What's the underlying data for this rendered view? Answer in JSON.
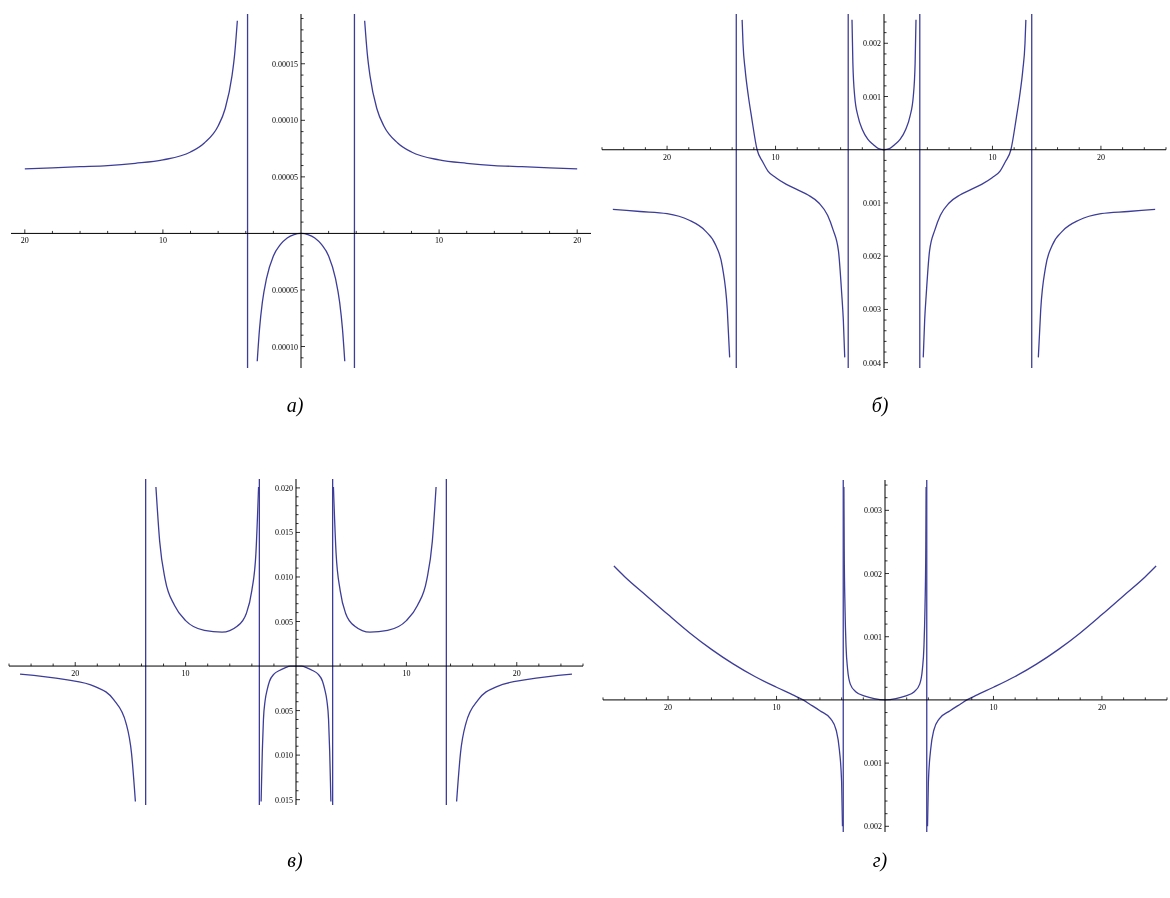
{
  "chart_data": [
    {
      "type": "line",
      "title": "а)",
      "color": "#3d3d99",
      "xlim": [
        -21,
        21
      ],
      "ylim": [
        -0.000119,
        0.000194
      ],
      "xticks": [
        {
          "value": -20,
          "label": "20"
        },
        {
          "value": -18,
          "label": null
        },
        {
          "value": -16,
          "label": null
        },
        {
          "value": -14,
          "label": null
        },
        {
          "value": -12,
          "label": null
        },
        {
          "value": -10,
          "label": "10"
        },
        {
          "value": -8,
          "label": null
        },
        {
          "value": -6,
          "label": null
        },
        {
          "value": -4,
          "label": null
        },
        {
          "value": -2,
          "label": null
        },
        {
          "value": 2,
          "label": null
        },
        {
          "value": 4,
          "label": null
        },
        {
          "value": 6,
          "label": null
        },
        {
          "value": 8,
          "label": null
        },
        {
          "value": 10,
          "label": "10"
        },
        {
          "value": 12,
          "label": null
        },
        {
          "value": 14,
          "label": null
        },
        {
          "value": 16,
          "label": null
        },
        {
          "value": 18,
          "label": null
        },
        {
          "value": 20,
          "label": "20"
        }
      ],
      "yticks": [
        {
          "value": -0.00011,
          "label": null
        },
        {
          "value": -0.0001,
          "label": "0.00010"
        },
        {
          "value": -9e-05,
          "label": null
        },
        {
          "value": -8e-05,
          "label": null
        },
        {
          "value": -7e-05,
          "label": null
        },
        {
          "value": -6e-05,
          "label": null
        },
        {
          "value": -5e-05,
          "label": "0.00005"
        },
        {
          "value": -4e-05,
          "label": null
        },
        {
          "value": -3e-05,
          "label": null
        },
        {
          "value": -2e-05,
          "label": null
        },
        {
          "value": -1e-05,
          "label": null
        },
        {
          "value": 1e-05,
          "label": null
        },
        {
          "value": 2e-05,
          "label": null
        },
        {
          "value": 3e-05,
          "label": null
        },
        {
          "value": 4e-05,
          "label": null
        },
        {
          "value": 5e-05,
          "label": "0.00005"
        },
        {
          "value": 6e-05,
          "label": null
        },
        {
          "value": 7e-05,
          "label": null
        },
        {
          "value": 8e-05,
          "label": null
        },
        {
          "value": 9e-05,
          "label": null
        },
        {
          "value": 0.0001,
          "label": "0.00010"
        },
        {
          "value": 0.00011,
          "label": null
        },
        {
          "value": 0.00012,
          "label": null
        },
        {
          "value": 0.00013,
          "label": null
        },
        {
          "value": 0.00014,
          "label": null
        },
        {
          "value": 0.00015,
          "label": "0.00015"
        },
        {
          "value": 0.00016,
          "label": null
        },
        {
          "value": 0.00017,
          "label": null
        },
        {
          "value": 0.00018,
          "label": null
        },
        {
          "value": 0.00019,
          "label": null
        }
      ],
      "x": [
        -20,
        -18,
        -16,
        -14,
        -12,
        -10,
        -8,
        -7,
        -6,
        -5.5,
        -5,
        -4.8,
        -4.61,
        -3.87,
        -3.17,
        -3,
        -2.8,
        -2.5,
        -2,
        -1.5,
        -1,
        -0.5,
        0,
        0.5,
        1,
        1.5,
        2,
        2.5,
        2.8,
        3,
        3.17,
        3.87,
        4.61,
        4.8,
        5,
        5.5,
        6,
        7,
        8,
        10,
        12,
        14,
        16,
        18,
        20
      ],
      "values": [
        5.7e-05,
        5.8e-05,
        5.9e-05,
        6e-05,
        6.2e-05,
        6.5e-05,
        7.2e-05,
        8e-05,
        9.5e-05,
        0.00011,
        0.000139,
        0.000159,
        0.000188,
        null,
        -0.000113,
        -8.4e-05,
        -6.1e-05,
        -4e-05,
        -2e-05,
        -1e-05,
        -4e-06,
        -1e-06,
        0,
        -1e-06,
        -4e-06,
        -1e-05,
        -2e-05,
        -4e-05,
        -6.1e-05,
        -8.4e-05,
        -0.000113,
        null,
        0.000188,
        0.000159,
        0.000139,
        0.00011,
        9.5e-05,
        8e-05,
        7.2e-05,
        6.5e-05,
        6.2e-05,
        6e-05,
        5.9e-05,
        5.8e-05,
        5.7e-05
      ],
      "ref_lines": [
        {
          "axis": "x",
          "value": -3.87,
          "color": "#3d3d99"
        },
        {
          "axis": "x",
          "value": 3.87,
          "color": "#3d3d99"
        }
      ]
    },
    {
      "type": "line",
      "title": "б)",
      "color": "#3d3d99",
      "xlim": [
        -26,
        26
      ],
      "ylim": [
        -0.0041,
        0.00255
      ],
      "xticks": [
        {
          "value": -26,
          "label": null
        },
        {
          "value": -24,
          "label": null
        },
        {
          "value": -22,
          "label": null
        },
        {
          "value": -20,
          "label": "20"
        },
        {
          "value": -18,
          "label": null
        },
        {
          "value": -16,
          "label": null
        },
        {
          "value": -14,
          "label": null
        },
        {
          "value": -12,
          "label": null
        },
        {
          "value": -10,
          "label": "10"
        },
        {
          "value": -8,
          "label": null
        },
        {
          "value": -6,
          "label": null
        },
        {
          "value": -4,
          "label": null
        },
        {
          "value": -2,
          "label": null
        },
        {
          "value": 2,
          "label": null
        },
        {
          "value": 4,
          "label": null
        },
        {
          "value": 6,
          "label": null
        },
        {
          "value": 8,
          "label": null
        },
        {
          "value": 10,
          "label": "10"
        },
        {
          "value": 12,
          "label": null
        },
        {
          "value": 14,
          "label": null
        },
        {
          "value": 16,
          "label": null
        },
        {
          "value": 18,
          "label": null
        },
        {
          "value": 20,
          "label": "20"
        },
        {
          "value": 22,
          "label": null
        },
        {
          "value": 24,
          "label": null
        },
        {
          "value": 26,
          "label": null
        }
      ],
      "yticks": [
        {
          "value": -0.004,
          "label": "0.004"
        },
        {
          "value": -0.0038,
          "label": null
        },
        {
          "value": -0.0036,
          "label": null
        },
        {
          "value": -0.0034,
          "label": null
        },
        {
          "value": -0.0032,
          "label": null
        },
        {
          "value": -0.003,
          "label": "0.003"
        },
        {
          "value": -0.0028,
          "label": null
        },
        {
          "value": -0.0026,
          "label": null
        },
        {
          "value": -0.0024,
          "label": null
        },
        {
          "value": -0.0022,
          "label": null
        },
        {
          "value": -0.002,
          "label": "0.002"
        },
        {
          "value": -0.0018,
          "label": null
        },
        {
          "value": -0.0016,
          "label": null
        },
        {
          "value": -0.0014,
          "label": null
        },
        {
          "value": -0.0012,
          "label": null
        },
        {
          "value": -0.001,
          "label": "0.001"
        },
        {
          "value": -0.0008,
          "label": null
        },
        {
          "value": -0.0006,
          "label": null
        },
        {
          "value": -0.0004,
          "label": null
        },
        {
          "value": -0.0002,
          "label": null
        },
        {
          "value": 0.0002,
          "label": null
        },
        {
          "value": 0.0004,
          "label": null
        },
        {
          "value": 0.0006,
          "label": null
        },
        {
          "value": 0.0008,
          "label": null
        },
        {
          "value": 0.001,
          "label": "0.001"
        },
        {
          "value": 0.0012,
          "label": null
        },
        {
          "value": 0.0014,
          "label": null
        },
        {
          "value": 0.0016,
          "label": null
        },
        {
          "value": 0.0018,
          "label": null
        },
        {
          "value": 0.002,
          "label": "0.002"
        },
        {
          "value": 0.0022,
          "label": null
        },
        {
          "value": 0.0024,
          "label": null
        }
      ],
      "x": [
        -25,
        -22.5,
        -20,
        -18,
        -16.5,
        -15.5,
        -14.9,
        -14.45,
        -14.23,
        -13.62,
        -13.08,
        -13,
        -12.8,
        -12.5,
        -12.2,
        -11.7,
        -11.2,
        -10.7,
        -10,
        -9,
        -8,
        -7,
        -6,
        -5.2,
        -4.7,
        -4.2,
        -3.9,
        -3.75,
        -3.62,
        -3.3,
        -2.95,
        -2.87,
        -2.7,
        -2.4,
        -2,
        -1.5,
        -1,
        -0.5,
        0,
        0.5,
        1,
        1.5,
        2,
        2.4,
        2.7,
        2.87,
        2.95,
        3.3,
        3.62,
        3.75,
        3.9,
        4.2,
        4.7,
        5.2,
        6,
        7,
        8,
        9,
        10,
        10.7,
        11.2,
        11.7,
        12.2,
        12.5,
        12.8,
        13,
        13.08,
        13.62,
        14.23,
        14.45,
        14.9,
        15.5,
        16.5,
        18,
        20,
        22.5,
        25
      ],
      "values": [
        -0.00112,
        -0.00116,
        -0.0012,
        -0.00132,
        -0.00152,
        -0.0018,
        -0.0022,
        -0.003,
        -0.0039,
        null,
        0.00244,
        0.002,
        0.0015,
        0.001,
        0.0006,
        0,
        -0.00022,
        -0.0004,
        -0.00052,
        -0.00065,
        -0.00075,
        -0.00085,
        -0.001,
        -0.00123,
        -0.0015,
        -0.0019,
        -0.0027,
        -0.0032,
        -0.0039,
        null,
        0.00244,
        0.00163,
        0.001,
        0.00063,
        0.00038,
        0.0002,
        0.0001,
        2e-05,
        0,
        2e-05,
        0.0001,
        0.0002,
        0.00038,
        0.00063,
        0.001,
        0.00163,
        0.00244,
        null,
        -0.0039,
        -0.0032,
        -0.0027,
        -0.0019,
        -0.0015,
        -0.00123,
        -0.001,
        -0.00085,
        -0.00075,
        -0.00065,
        -0.00052,
        -0.0004,
        -0.00022,
        0,
        0.0006,
        0.001,
        0.0015,
        0.002,
        0.00244,
        null,
        -0.0039,
        -0.003,
        -0.0022,
        -0.0018,
        -0.00152,
        -0.00132,
        -0.0012,
        -0.00116,
        -0.00112
      ],
      "ref_lines": [
        {
          "axis": "x",
          "value": -13.62,
          "color": "#3d3d99"
        },
        {
          "axis": "x",
          "value": -3.3,
          "color": "#3d3d99"
        },
        {
          "axis": "x",
          "value": 3.3,
          "color": "#3d3d99"
        },
        {
          "axis": "x",
          "value": 13.62,
          "color": "#3d3d99"
        }
      ]
    },
    {
      "type": "line",
      "title": "в)",
      "color": "#3d3d99",
      "xlim": [
        -26,
        26
      ],
      "ylim": [
        -0.0156,
        0.021
      ],
      "xticks": [
        {
          "value": -26,
          "label": null
        },
        {
          "value": -24,
          "label": null
        },
        {
          "value": -22,
          "label": null
        },
        {
          "value": -20,
          "label": "20"
        },
        {
          "value": -18,
          "label": null
        },
        {
          "value": -16,
          "label": null
        },
        {
          "value": -14,
          "label": null
        },
        {
          "value": -12,
          "label": null
        },
        {
          "value": -10,
          "label": "10"
        },
        {
          "value": -8,
          "label": null
        },
        {
          "value": -6,
          "label": null
        },
        {
          "value": -4,
          "label": null
        },
        {
          "value": -2,
          "label": null
        },
        {
          "value": 2,
          "label": null
        },
        {
          "value": 4,
          "label": null
        },
        {
          "value": 6,
          "label": null
        },
        {
          "value": 8,
          "label": null
        },
        {
          "value": 10,
          "label": "10"
        },
        {
          "value": 12,
          "label": null
        },
        {
          "value": 14,
          "label": null
        },
        {
          "value": 16,
          "label": null
        },
        {
          "value": 18,
          "label": null
        },
        {
          "value": 20,
          "label": "20"
        },
        {
          "value": 22,
          "label": null
        },
        {
          "value": 24,
          "label": null
        },
        {
          "value": 26,
          "label": null
        }
      ],
      "yticks": [
        {
          "value": -0.015,
          "label": "0.015"
        },
        {
          "value": -0.014,
          "label": null
        },
        {
          "value": -0.013,
          "label": null
        },
        {
          "value": -0.012,
          "label": null
        },
        {
          "value": -0.011,
          "label": null
        },
        {
          "value": -0.01,
          "label": "0.010"
        },
        {
          "value": -0.009,
          "label": null
        },
        {
          "value": -0.008,
          "label": null
        },
        {
          "value": -0.007,
          "label": null
        },
        {
          "value": -0.006,
          "label": null
        },
        {
          "value": -0.005,
          "label": "0.005"
        },
        {
          "value": -0.004,
          "label": null
        },
        {
          "value": -0.003,
          "label": null
        },
        {
          "value": -0.002,
          "label": null
        },
        {
          "value": -0.001,
          "label": null
        },
        {
          "value": 0.001,
          "label": null
        },
        {
          "value": 0.002,
          "label": null
        },
        {
          "value": 0.003,
          "label": null
        },
        {
          "value": 0.004,
          "label": null
        },
        {
          "value": 0.005,
          "label": "0.005"
        },
        {
          "value": 0.006,
          "label": null
        },
        {
          "value": 0.007,
          "label": null
        },
        {
          "value": 0.008,
          "label": null
        },
        {
          "value": 0.009,
          "label": null
        },
        {
          "value": 0.01,
          "label": "0.010"
        },
        {
          "value": 0.011,
          "label": null
        },
        {
          "value": 0.012,
          "label": null
        },
        {
          "value": 0.013,
          "label": null
        },
        {
          "value": 0.014,
          "label": null
        },
        {
          "value": 0.015,
          "label": "0.015"
        },
        {
          "value": 0.016,
          "label": null
        },
        {
          "value": 0.017,
          "label": null
        },
        {
          "value": 0.018,
          "label": null
        },
        {
          "value": 0.019,
          "label": null
        },
        {
          "value": 0.02,
          "label": "0.020"
        }
      ],
      "x": [
        -25,
        -21,
        -18.2,
        -16.5,
        -15.4,
        -14.9,
        -14.55,
        -13.62,
        -12.69,
        -12.35,
        -11.85,
        -11,
        -10,
        -8.3,
        -6.7,
        -5.3,
        -4.5,
        -4,
        -3.63,
        -3.39,
        -3.32,
        -3.16,
        -3.12,
        -3.05,
        -2.95,
        -2.8,
        -2.6,
        -2.4,
        -2,
        -1.5,
        -1,
        -0.5,
        0,
        0.5,
        1,
        1.5,
        2,
        2.4,
        2.6,
        2.8,
        2.95,
        3.05,
        3.12,
        3.16,
        3.32,
        3.39,
        3.63,
        4,
        4.5,
        5.3,
        6.7,
        8.3,
        10,
        11,
        11.85,
        12.35,
        12.69,
        13.62,
        14.55,
        14.9,
        15.4,
        16.5,
        18.2,
        21,
        25
      ],
      "values": [
        -0.0009,
        -0.0015,
        -0.0023,
        -0.0038,
        -0.0064,
        -0.0098,
        -0.0152,
        null,
        0.0201,
        0.014,
        0.0097,
        0.0068,
        0.0051,
        0.004,
        0.0038,
        0.0045,
        0.0059,
        0.0085,
        0.0127,
        0.0201,
        null,
        -0.0152,
        -0.013,
        -0.0095,
        -0.006,
        -0.0039,
        -0.0026,
        -0.0017,
        -0.0009,
        -0.0005,
        -0.0002,
        0,
        0,
        0,
        -0.0002,
        -0.0005,
        -0.0009,
        -0.0017,
        -0.0026,
        -0.0039,
        -0.006,
        -0.0095,
        -0.013,
        -0.0152,
        null,
        0.0201,
        0.0127,
        0.0085,
        0.0059,
        0.0045,
        0.0038,
        0.004,
        0.0051,
        0.0068,
        0.0097,
        0.014,
        0.0201,
        null,
        -0.0152,
        -0.0098,
        -0.0064,
        -0.0038,
        -0.0023,
        -0.0015,
        -0.0009
      ],
      "ref_lines": [
        {
          "axis": "x",
          "value": -13.62,
          "color": "#3d3d99"
        },
        {
          "axis": "x",
          "value": -3.32,
          "color": "#3d3d99"
        },
        {
          "axis": "x",
          "value": 3.32,
          "color": "#3d3d99"
        },
        {
          "axis": "x",
          "value": 13.62,
          "color": "#3d3d99"
        }
      ]
    },
    {
      "type": "line",
      "title": "г)",
      "color": "#3d3d99",
      "xlim": [
        -26,
        26
      ],
      "ylim": [
        -0.00209,
        0.00348
      ],
      "xticks": [
        {
          "value": -26,
          "label": null
        },
        {
          "value": -24,
          "label": null
        },
        {
          "value": -22,
          "label": null
        },
        {
          "value": -20,
          "label": "20"
        },
        {
          "value": -18,
          "label": null
        },
        {
          "value": -16,
          "label": null
        },
        {
          "value": -14,
          "label": null
        },
        {
          "value": -12,
          "label": null
        },
        {
          "value": -10,
          "label": "10"
        },
        {
          "value": -8,
          "label": null
        },
        {
          "value": -6,
          "label": null
        },
        {
          "value": -4,
          "label": null
        },
        {
          "value": -2,
          "label": null
        },
        {
          "value": 2,
          "label": null
        },
        {
          "value": 4,
          "label": null
        },
        {
          "value": 6,
          "label": null
        },
        {
          "value": 8,
          "label": null
        },
        {
          "value": 10,
          "label": "10"
        },
        {
          "value": 12,
          "label": null
        },
        {
          "value": 14,
          "label": null
        },
        {
          "value": 16,
          "label": null
        },
        {
          "value": 18,
          "label": null
        },
        {
          "value": 20,
          "label": "20"
        },
        {
          "value": 22,
          "label": null
        },
        {
          "value": 24,
          "label": null
        },
        {
          "value": 26,
          "label": null
        }
      ],
      "yticks": [
        {
          "value": -0.002,
          "label": "0.002"
        },
        {
          "value": -0.0018,
          "label": null
        },
        {
          "value": -0.0016,
          "label": null
        },
        {
          "value": -0.0014,
          "label": null
        },
        {
          "value": -0.0012,
          "label": null
        },
        {
          "value": -0.001,
          "label": "0.001"
        },
        {
          "value": -0.0008,
          "label": null
        },
        {
          "value": -0.0006,
          "label": null
        },
        {
          "value": -0.0004,
          "label": null
        },
        {
          "value": -0.0002,
          "label": null
        },
        {
          "value": 0.0002,
          "label": null
        },
        {
          "value": 0.0004,
          "label": null
        },
        {
          "value": 0.0006,
          "label": null
        },
        {
          "value": 0.0008,
          "label": null
        },
        {
          "value": 0.001,
          "label": "0.001"
        },
        {
          "value": 0.0012,
          "label": null
        },
        {
          "value": 0.0014,
          "label": null
        },
        {
          "value": 0.0016,
          "label": null
        },
        {
          "value": 0.0018,
          "label": null
        },
        {
          "value": 0.002,
          "label": "0.002"
        },
        {
          "value": 0.0022,
          "label": null
        },
        {
          "value": 0.0024,
          "label": null
        },
        {
          "value": 0.0026,
          "label": null
        },
        {
          "value": 0.0028,
          "label": null
        },
        {
          "value": 0.003,
          "label": "0.003"
        },
        {
          "value": 0.0032,
          "label": null
        },
        {
          "value": 0.0034,
          "label": null
        }
      ],
      "x": [
        -25,
        -24,
        -22,
        -20,
        -18,
        -16,
        -14,
        -12,
        -10,
        -8.5,
        -7.55,
        -7,
        -6,
        -5,
        -4.5,
        -4.2,
        -4,
        -3.92,
        -3.85,
        -3.79,
        -3.76,
        -3.69,
        -3.59,
        -3.45,
        -3.2,
        -2.7,
        -1.85,
        -1,
        0,
        1,
        1.85,
        2.7,
        3.2,
        3.45,
        3.59,
        3.69,
        3.76,
        3.79,
        3.85,
        3.92,
        4,
        4.2,
        4.5,
        5,
        6,
        7,
        7.55,
        8.5,
        10,
        12,
        14,
        16,
        18,
        20,
        22,
        24,
        25
      ],
      "values": [
        0.00212,
        0.00195,
        0.00165,
        0.00135,
        0.00106,
        0.0008,
        0.00057,
        0.00037,
        0.0002,
        8e-05,
        0,
        -6e-05,
        -0.00017,
        -0.0003,
        -0.00048,
        -0.0008,
        -0.0013,
        -0.002,
        null,
        0.00337,
        0.00236,
        0.00148,
        0.00084,
        0.00049,
        0.00025,
        0.00013,
        6e-05,
        2e-05,
        0,
        2e-05,
        6e-05,
        0.00013,
        0.00025,
        0.00049,
        0.00084,
        0.00148,
        0.00236,
        0.00337,
        null,
        -0.002,
        -0.0013,
        -0.0008,
        -0.00048,
        -0.0003,
        -0.00017,
        -6e-05,
        0,
        8e-05,
        0.0002,
        0.00037,
        0.00057,
        0.0008,
        0.00106,
        0.00135,
        0.00165,
        0.00195,
        0.00212
      ],
      "ref_lines": [
        {
          "axis": "x",
          "value": -3.85,
          "color": "#3d3d99"
        },
        {
          "axis": "x",
          "value": 3.85,
          "color": "#3d3d99"
        }
      ]
    }
  ]
}
